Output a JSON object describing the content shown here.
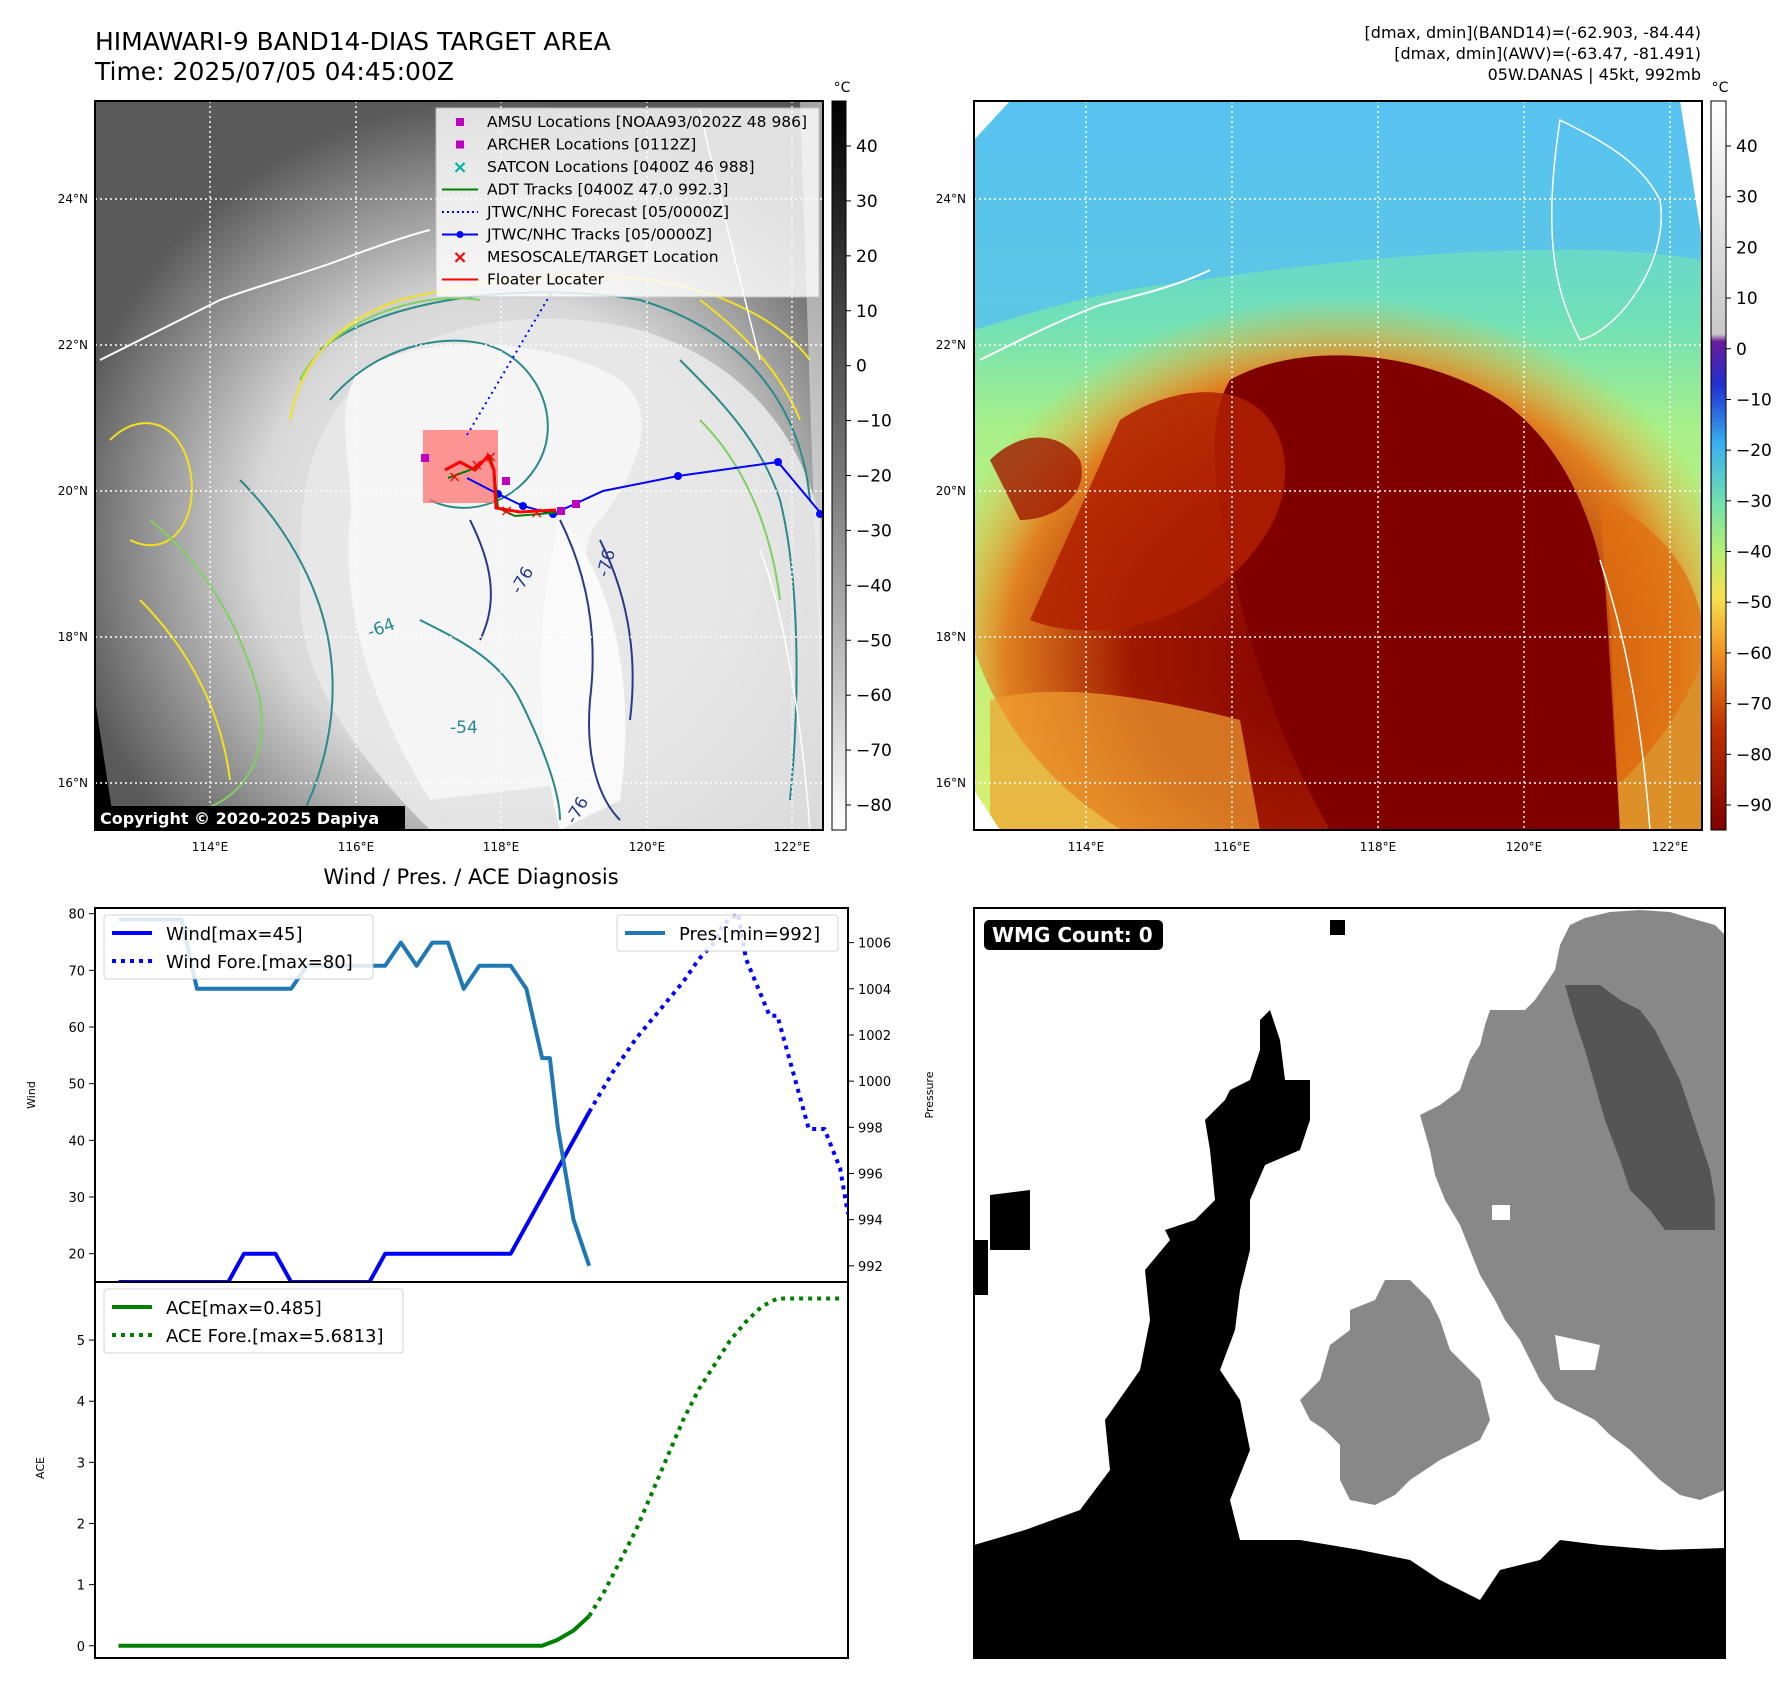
{
  "header": {
    "title": "HIMAWARI-9 BAND14-DIAS TARGET AREA",
    "time": "Time: 2025/07/05 04:45:00Z",
    "info_line1": "[dmax, dmin](BAND14)=(-62.903, -84.44)",
    "info_line2": "[dmax, dmin](AWV)=(-63.47, -81.491)",
    "info_line3": "05W.DANAS | 45kt, 992mb"
  },
  "map_axes": {
    "lon_labels": [
      "114°E",
      "116°E",
      "118°E",
      "120°E",
      "122°E"
    ],
    "lat_labels": [
      "24°N",
      "22°N",
      "20°N",
      "18°N",
      "16°N"
    ]
  },
  "colorbar_left": {
    "unit": "°C",
    "ticks": [
      "40",
      "30",
      "20",
      "10",
      "0",
      "−10",
      "−20",
      "−30",
      "−40",
      "−50",
      "−60",
      "−70",
      "−80"
    ]
  },
  "colorbar_right": {
    "unit": "°C",
    "ticks": [
      "40",
      "30",
      "20",
      "10",
      "0",
      "−10",
      "−20",
      "−30",
      "−40",
      "−50",
      "−60",
      "−70",
      "−80",
      "−90"
    ]
  },
  "legend": {
    "items": [
      {
        "label": "AMSU Locations [NOAA93/0202Z 48 986]",
        "color": "#c000c0",
        "marker": "square"
      },
      {
        "label": "ARCHER Locations [0112Z]",
        "color": "#c000c0",
        "marker": "square"
      },
      {
        "label": "SATCON Locations [0400Z 46 988]",
        "color": "#00b0b0",
        "marker": "x"
      },
      {
        "label": "ADT Tracks [0400Z 47.0 992.3]",
        "color": "#008000",
        "marker": "line"
      },
      {
        "label": "JTWC/NHC Forecast [05/0000Z]",
        "color": "#0000ff",
        "marker": "dotted"
      },
      {
        "label": "JTWC/NHC Tracks [05/0000Z]",
        "color": "#0000ff",
        "marker": "line-dot"
      },
      {
        "label": "MESOSCALE/TARGET Location",
        "color": "#ff0000",
        "marker": "x"
      },
      {
        "label": "Floater Locater",
        "color": "#ff0000",
        "marker": "line"
      }
    ]
  },
  "contour_labels": [
    "-76",
    "-64",
    "-54",
    "-76",
    "-76"
  ],
  "copyright": "Copyright © 2020-2025 Dapiya",
  "diag_title": "Wind / Pres. / ACE Diagnosis",
  "wmg_label": "WMG Count: 0",
  "chart_data": [
    {
      "type": "line",
      "name": "wind-pressure",
      "ylabel": "Wind",
      "y2label": "Pressure",
      "ylim": [
        15,
        81
      ],
      "y2lim": [
        991.3,
        1007.5
      ],
      "xlim": [
        -1.5,
        30.5
      ],
      "yticks": [
        20,
        30,
        40,
        50,
        60,
        70,
        80
      ],
      "y2ticks": [
        992,
        994,
        996,
        998,
        1000,
        1002,
        1004,
        1006
      ],
      "legend_left": [
        "Wind[max=45]",
        "Wind Fore.[max=80]"
      ],
      "legend_right": [
        "Pres.[min=992]"
      ],
      "series": [
        {
          "name": "Wind[max=45]",
          "axis": "left",
          "color": "#0000ff",
          "style": "solid",
          "x": [
            0,
            7,
            8,
            9,
            10,
            11,
            16,
            17,
            25,
            30
          ],
          "y": [
            15,
            15,
            20,
            20,
            20,
            15,
            15,
            20,
            20,
            45
          ]
        },
        {
          "name": "Wind Fore.[max=80]",
          "axis": "left",
          "color": "#0000ff",
          "style": "dotted",
          "x": [
            30,
            31.5,
            33,
            34.5,
            36,
            37,
            38,
            38.5,
            39.5,
            40,
            41.5,
            42,
            43,
            44,
            45,
            46,
            46.5
          ],
          "y": [
            45,
            52,
            58,
            63,
            68,
            72,
            75,
            78,
            80,
            72,
            62,
            62,
            52,
            42,
            42,
            35,
            27
          ]
        },
        {
          "name": "Pres.[min=992]",
          "axis": "right",
          "color": "#1f77b4",
          "style": "solid",
          "x": [
            0,
            4,
            5,
            11,
            12,
            17,
            18,
            19,
            20,
            21,
            22,
            23,
            23.5,
            25,
            26,
            27,
            27.5,
            28,
            29,
            30
          ],
          "y": [
            1007,
            1007,
            1004,
            1004,
            1005,
            1005,
            1006,
            1005,
            1006,
            1006,
            1004,
            1005,
            1005,
            1005,
            1004,
            1001,
            1001,
            998,
            994,
            992
          ]
        }
      ]
    },
    {
      "type": "line",
      "name": "ace",
      "ylabel": "ACE",
      "ylim": [
        -0.2,
        5.95
      ],
      "xlim": [
        -1.5,
        46.5
      ],
      "yticks": [
        0,
        1,
        2,
        3,
        4,
        5
      ],
      "legend": [
        "ACE[max=0.485]",
        "ACE Fore.[max=5.6813]"
      ],
      "series": [
        {
          "name": "ACE[max=0.485]",
          "color": "#008000",
          "style": "solid",
          "x": [
            0,
            27,
            28,
            29,
            30
          ],
          "y": [
            0,
            0,
            0.1,
            0.25,
            0.485
          ]
        },
        {
          "name": "ACE Fore.[max=5.6813]",
          "color": "#008000",
          "style": "dotted",
          "x": [
            30,
            31,
            32,
            33,
            34,
            35,
            36,
            37,
            38,
            39,
            40,
            41,
            42,
            43,
            44,
            45,
            46
          ],
          "y": [
            0.485,
            0.9,
            1.4,
            1.9,
            2.5,
            3.1,
            3.7,
            4.2,
            4.6,
            5.0,
            5.3,
            5.55,
            5.68,
            5.68,
            5.68,
            5.68,
            5.68
          ]
        }
      ]
    }
  ]
}
